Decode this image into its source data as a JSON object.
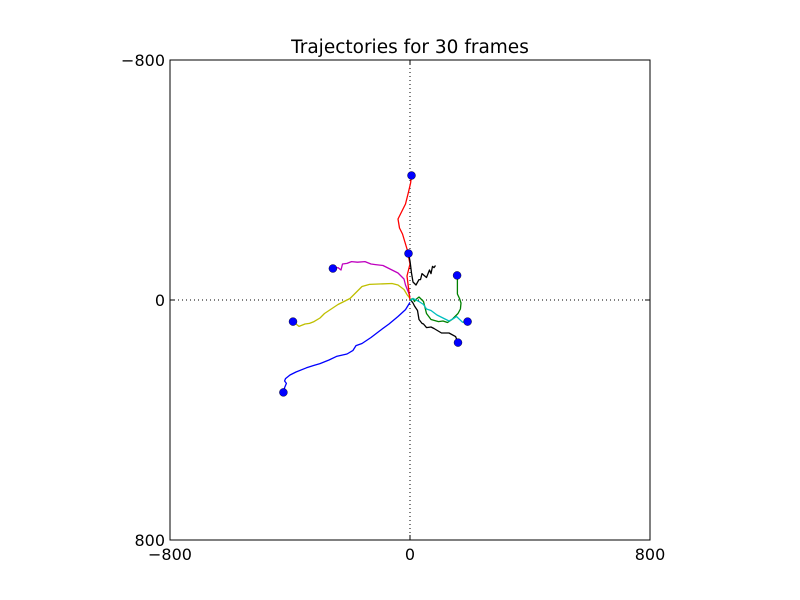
{
  "chart_data": {
    "type": "line",
    "title": "Trajectories for 30 frames",
    "xlabel": "",
    "ylabel": "",
    "xlim": [
      -800,
      800
    ],
    "ylim": [
      -800,
      800
    ],
    "y_axis_inverted": true,
    "grid": false,
    "legend": "none",
    "reference_lines": [
      {
        "orientation": "vertical",
        "value": 0,
        "style": "dotted",
        "color": "#000000"
      },
      {
        "orientation": "horizontal",
        "value": 0,
        "style": "dotted",
        "color": "#000000"
      }
    ],
    "xticks": [
      {
        "value": -800,
        "label": "−800"
      },
      {
        "value": 0,
        "label": "0"
      },
      {
        "value": 800,
        "label": "800"
      }
    ],
    "yticks": [
      {
        "value": -800,
        "label": "−800"
      },
      {
        "value": 0,
        "label": "0"
      },
      {
        "value": 800,
        "label": "800"
      }
    ],
    "start_marker_color": "#0000ff",
    "series": [
      {
        "color": "#0000ff",
        "x": [
          -420,
          -418,
          -412,
          -418,
          -415,
          -400,
          -380,
          -345,
          -320,
          -300,
          -270,
          -245,
          -210,
          -190,
          -180,
          -160,
          -130,
          -100,
          -70,
          -40,
          -15,
          0
        ],
        "y": [
          308,
          292,
          278,
          270,
          262,
          250,
          240,
          226,
          218,
          212,
          200,
          188,
          180,
          168,
          152,
          145,
          125,
          102,
          80,
          55,
          32,
          8
        ]
      },
      {
        "color": "#bfbf00",
        "x": [
          -390,
          -370,
          -350,
          -335,
          -320,
          -300,
          -285,
          -240,
          -200,
          -160,
          -135,
          -60,
          -40,
          -20,
          -10,
          0
        ],
        "y": [
          72,
          88,
          80,
          78,
          72,
          60,
          45,
          15,
          -5,
          -45,
          -52,
          -55,
          -50,
          -35,
          -18,
          -5
        ]
      },
      {
        "color": "#bf00bf",
        "x": [
          -255,
          -240,
          -230,
          -225,
          -210,
          -195,
          -175,
          -150,
          -130,
          -115,
          -90,
          -70,
          -40,
          -20,
          -15,
          -5,
          0
        ],
        "y": [
          -105,
          -108,
          -100,
          -120,
          -122,
          -128,
          -126,
          -128,
          -120,
          -118,
          -115,
          -105,
          -90,
          -70,
          -50,
          -25,
          -10
        ]
      },
      {
        "color": "#ff0000",
        "x": [
          5,
          2,
          -5,
          -15,
          -25,
          -35,
          -40,
          -35,
          -25,
          -10,
          0,
          -10,
          -5,
          0
        ],
        "y": [
          -415,
          -390,
          -360,
          -320,
          -300,
          -280,
          -270,
          -240,
          -220,
          -170,
          -120,
          -80,
          -40,
          0
        ]
      },
      {
        "color": "#000000",
        "x": [
          -5,
          0,
          5,
          10,
          20,
          30,
          35,
          40,
          55,
          65,
          70,
          75,
          80,
          85
        ],
        "y": [
          -155,
          -130,
          -90,
          -60,
          -50,
          -68,
          -68,
          -88,
          -75,
          -100,
          -88,
          -112,
          -108,
          -115
        ]
      },
      {
        "color": "#000000",
        "x": [
          160,
          152,
          130,
          105,
          80,
          70,
          55,
          45,
          40,
          30,
          25,
          15,
          10,
          0
        ],
        "y": [
          142,
          122,
          110,
          110,
          95,
          90,
          92,
          80,
          78,
          65,
          35,
          20,
          10,
          -3
        ]
      },
      {
        "color": "#008000",
        "x": [
          157,
          158,
          158,
          165,
          170,
          168,
          160,
          150,
          140,
          125,
          110,
          95,
          70,
          55,
          45,
          30,
          20,
          15,
          10,
          0
        ],
        "y": [
          -82,
          -70,
          -20,
          -5,
          10,
          30,
          45,
          55,
          65,
          75,
          70,
          72,
          65,
          45,
          5,
          -10,
          -2,
          5,
          -5,
          0
        ]
      },
      {
        "color": "#00bfbf",
        "x": [
          192,
          175,
          155,
          145,
          130,
          110,
          90,
          70,
          55,
          45,
          30,
          20,
          10,
          5,
          0
        ],
        "y": [
          72,
          74,
          55,
          62,
          70,
          60,
          50,
          35,
          30,
          15,
          5,
          0,
          -5,
          0,
          0
        ]
      }
    ],
    "start_points": [
      {
        "x": -422,
        "y": 308
      },
      {
        "x": -390,
        "y": 72
      },
      {
        "x": -257,
        "y": -105
      },
      {
        "x": 5,
        "y": -415
      },
      {
        "x": -5,
        "y": -155
      },
      {
        "x": 160,
        "y": 142
      },
      {
        "x": 157,
        "y": -82
      },
      {
        "x": 192,
        "y": 72
      }
    ]
  }
}
